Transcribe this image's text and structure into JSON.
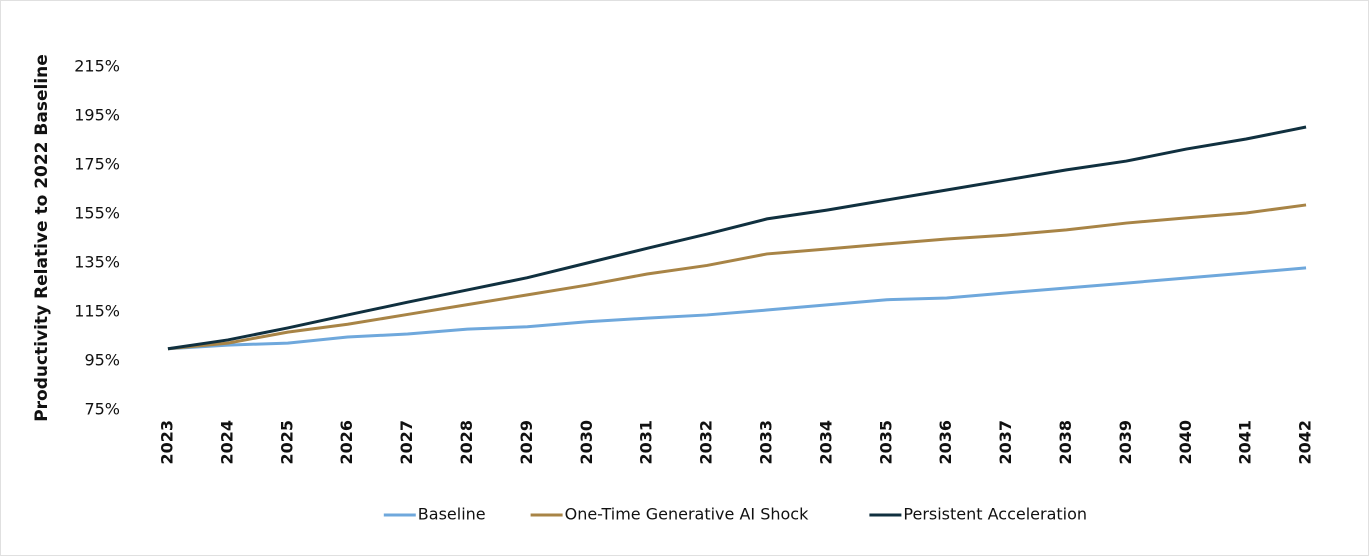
{
  "chart_data": {
    "type": "line",
    "y_label": "Productivity Relative to 2022 Baseline",
    "categories": [
      "2023",
      "2024",
      "2025",
      "2026",
      "2027",
      "2028",
      "2029",
      "2030",
      "2031",
      "2032",
      "2033",
      "2034",
      "2035",
      "2036",
      "2037",
      "2038",
      "2039",
      "2040",
      "2041",
      "2042"
    ],
    "series": [
      {
        "name": "Baseline",
        "color": "#6fa8dc",
        "values": [
          100,
          101.5,
          102.3,
          104.8,
          106,
          108,
          109,
          111,
          112.5,
          113.8,
          115.8,
          117.9,
          120,
          120.7,
          122.8,
          124.8,
          126.8,
          128.9,
          130.9,
          133
        ]
      },
      {
        "name": "One-Time Generative AI Shock",
        "color": "#a88446",
        "values": [
          100,
          102.3,
          106.8,
          110,
          114,
          118,
          122,
          126,
          130.5,
          134,
          138.7,
          140.7,
          142.8,
          144.8,
          146.4,
          148.5,
          151.3,
          153.4,
          155.4,
          158.7
        ]
      },
      {
        "name": "Persistent Acceleration",
        "color": "#10303f",
        "values": [
          100,
          103.6,
          108.5,
          113.8,
          119,
          124,
          129,
          135,
          141,
          146.8,
          153,
          156.6,
          160.7,
          164.8,
          168.9,
          173,
          176.6,
          181.5,
          185.6,
          190.5
        ]
      }
    ],
    "ylim": [
      75,
      215
    ],
    "yticks": [
      {
        "value": 75,
        "label": "75%"
      },
      {
        "value": 95,
        "label": "95%"
      },
      {
        "value": 115,
        "label": "115%"
      },
      {
        "value": 135,
        "label": "135%"
      },
      {
        "value": 155,
        "label": "155%"
      },
      {
        "value": 175,
        "label": "175%"
      },
      {
        "value": 195,
        "label": "195%"
      },
      {
        "value": 215,
        "label": "215%"
      }
    ],
    "grid": false,
    "legend": "bottom"
  }
}
